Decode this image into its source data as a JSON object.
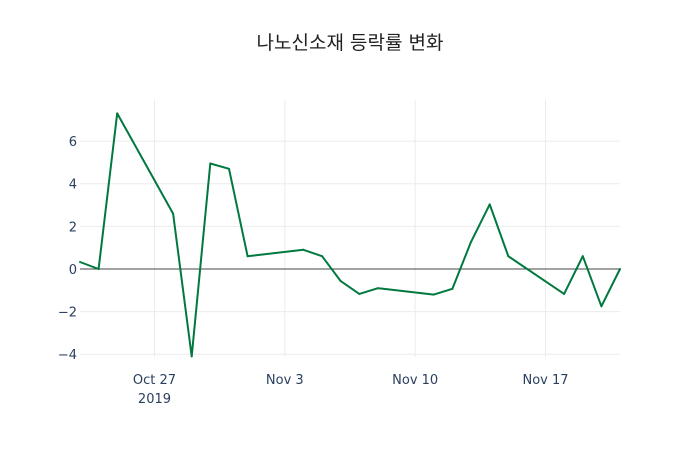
{
  "chart_data": {
    "type": "line",
    "title": "나노신소재 등락률 변화",
    "xlabel": "",
    "ylabel": "",
    "x": [
      "2019-10-23",
      "2019-10-24",
      "2019-10-25",
      "2019-10-28",
      "2019-10-29",
      "2019-10-30",
      "2019-10-31",
      "2019-11-01",
      "2019-11-04",
      "2019-11-05",
      "2019-11-06",
      "2019-11-07",
      "2019-11-08",
      "2019-11-11",
      "2019-11-12",
      "2019-11-13",
      "2019-11-14",
      "2019-11-15",
      "2019-11-18",
      "2019-11-19",
      "2019-11-20",
      "2019-11-21"
    ],
    "series": [
      {
        "name": "등락률",
        "color": "#00793f",
        "values": [
          0.33,
          0.0,
          7.3,
          2.6,
          -4.1,
          4.95,
          4.7,
          0.6,
          0.9,
          0.6,
          -0.57,
          -1.17,
          -0.9,
          -1.2,
          -0.93,
          1.27,
          3.03,
          0.6,
          -1.17,
          0.6,
          -1.75,
          0.0
        ]
      }
    ],
    "xlim": [
      "2019-10-23",
      "2019-11-21"
    ],
    "ylim": [
      -4.13,
      7.93
    ],
    "x_ticks": [
      {
        "date": "2019-10-27",
        "label": "Oct 27",
        "sublabel": "2019"
      },
      {
        "date": "2019-11-03",
        "label": "Nov 3"
      },
      {
        "date": "2019-11-10",
        "label": "Nov 10"
      },
      {
        "date": "2019-11-17",
        "label": "Nov 17"
      }
    ],
    "y_ticks": [
      -4,
      -2,
      0,
      2,
      4,
      6
    ],
    "y_tick_labels": [
      "−4",
      "−2",
      "0",
      "2",
      "4",
      "6"
    ],
    "grid": true,
    "legend": "none"
  }
}
